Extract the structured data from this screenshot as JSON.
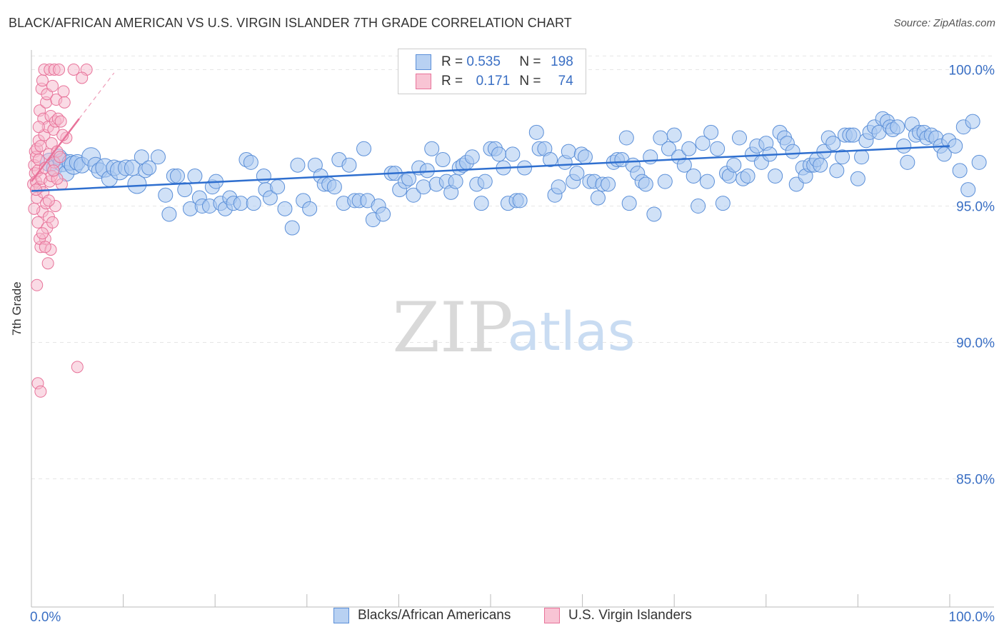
{
  "title": "BLACK/AFRICAN AMERICAN VS U.S. VIRGIN ISLANDER 7TH GRADE CORRELATION CHART",
  "source": "Source: ZipAtlas.com",
  "watermark": {
    "zip": "ZIP",
    "atlas": "atlas"
  },
  "colors": {
    "blue": "#5b8fd8",
    "blue_fill": "#a9c8f0",
    "blue_line": "#2f6fcf",
    "pink": "#e8739a",
    "pink_fill": "#f5b8cc",
    "axis_text": "#3a6fc4"
  },
  "legend": {
    "blue": {
      "r_label": "R =",
      "r_value": "0.535",
      "n_label": "N =",
      "n_value": "198"
    },
    "pink": {
      "r_label": "R =",
      "r_value": "0.171",
      "n_label": "N =",
      "n_value": "74"
    }
  },
  "chart_data": {
    "type": "scatter",
    "title": "BLACK/AFRICAN AMERICAN VS U.S. VIRGIN ISLANDER 7TH GRADE CORRELATION CHART",
    "xlabel": "",
    "ylabel": "7th Grade",
    "xlim": [
      0,
      100
    ],
    "ylim": [
      80.3,
      100.5
    ],
    "x_ticks": [
      "0.0%",
      "100.0%"
    ],
    "y_ticks": [
      {
        "value": 100,
        "label": "100.0%"
      },
      {
        "value": 95,
        "label": "95.0%"
      },
      {
        "value": 90,
        "label": "90.0%"
      },
      {
        "value": 85,
        "label": "85.0%"
      }
    ],
    "grid": true,
    "legend_position": "top-center",
    "series": [
      {
        "name": "Blacks/African Americans",
        "color": "#5b8fd8",
        "r": 0.535,
        "n": 198,
        "trend": {
          "x": [
            0,
            100
          ],
          "y": [
            95.55,
            97.2
          ]
        },
        "points": [
          [
            2.0,
            96.6
          ],
          [
            2.5,
            96.4
          ],
          [
            3.0,
            96.8
          ],
          [
            3.4,
            96.6
          ],
          [
            3.8,
            96.2
          ],
          [
            4.2,
            96.6
          ],
          [
            4.6,
            96.5
          ],
          [
            5.0,
            96.6
          ],
          [
            5.5,
            96.5
          ],
          [
            6.5,
            96.8
          ],
          [
            7.0,
            96.5
          ],
          [
            7.4,
            96.3
          ],
          [
            8.0,
            96.4
          ],
          [
            8.5,
            96.0
          ],
          [
            9.0,
            96.4
          ],
          [
            9.6,
            96.3
          ],
          [
            10.3,
            96.4
          ],
          [
            11.0,
            96.4
          ],
          [
            11.5,
            95.8
          ],
          [
            12.0,
            96.8
          ],
          [
            12.4,
            96.3
          ],
          [
            12.8,
            96.4
          ],
          [
            13.8,
            96.8
          ],
          [
            14.6,
            95.4
          ],
          [
            15.0,
            94.7
          ],
          [
            15.5,
            96.1
          ],
          [
            15.9,
            96.1
          ],
          [
            16.7,
            95.6
          ],
          [
            17.3,
            94.9
          ],
          [
            17.8,
            96.1
          ],
          [
            18.3,
            95.3
          ],
          [
            18.6,
            95.0
          ],
          [
            19.4,
            95.0
          ],
          [
            19.7,
            95.7
          ],
          [
            20.1,
            95.9
          ],
          [
            20.6,
            95.1
          ],
          [
            21.1,
            94.9
          ],
          [
            21.6,
            95.3
          ],
          [
            22.0,
            95.1
          ],
          [
            22.8,
            95.1
          ],
          [
            23.4,
            96.7
          ],
          [
            23.9,
            96.6
          ],
          [
            24.2,
            95.1
          ],
          [
            25.3,
            96.1
          ],
          [
            25.5,
            95.6
          ],
          [
            26.0,
            95.3
          ],
          [
            26.8,
            95.7
          ],
          [
            27.6,
            94.9
          ],
          [
            28.4,
            94.2
          ],
          [
            29.0,
            96.5
          ],
          [
            29.6,
            95.2
          ],
          [
            30.3,
            94.9
          ],
          [
            30.9,
            96.5
          ],
          [
            31.5,
            96.1
          ],
          [
            31.9,
            95.8
          ],
          [
            32.4,
            95.8
          ],
          [
            33.0,
            95.7
          ],
          [
            33.5,
            96.7
          ],
          [
            34.0,
            95.1
          ],
          [
            34.6,
            96.5
          ],
          [
            35.2,
            95.2
          ],
          [
            35.7,
            95.2
          ],
          [
            36.2,
            97.1
          ],
          [
            36.6,
            95.2
          ],
          [
            37.2,
            94.5
          ],
          [
            37.8,
            95.0
          ],
          [
            38.3,
            94.7
          ],
          [
            39.2,
            96.2
          ],
          [
            39.6,
            96.2
          ],
          [
            40.1,
            95.6
          ],
          [
            40.7,
            95.9
          ],
          [
            41.1,
            96.0
          ],
          [
            41.6,
            95.4
          ],
          [
            42.2,
            96.4
          ],
          [
            42.7,
            95.7
          ],
          [
            43.1,
            96.3
          ],
          [
            43.6,
            97.1
          ],
          [
            44.1,
            95.8
          ],
          [
            44.8,
            96.7
          ],
          [
            45.2,
            95.9
          ],
          [
            45.7,
            95.5
          ],
          [
            46.2,
            95.9
          ],
          [
            46.6,
            96.4
          ],
          [
            47.0,
            96.5
          ],
          [
            47.4,
            96.6
          ],
          [
            48.0,
            96.8
          ],
          [
            48.5,
            95.8
          ],
          [
            49.0,
            95.1
          ],
          [
            49.4,
            95.9
          ],
          [
            50.0,
            97.1
          ],
          [
            50.5,
            97.1
          ],
          [
            50.9,
            96.9
          ],
          [
            51.4,
            96.4
          ],
          [
            51.9,
            95.1
          ],
          [
            52.4,
            96.9
          ],
          [
            52.8,
            95.2
          ],
          [
            53.2,
            95.2
          ],
          [
            53.7,
            96.4
          ],
          [
            55.0,
            97.7
          ],
          [
            55.3,
            97.1
          ],
          [
            55.9,
            97.1
          ],
          [
            56.5,
            96.7
          ],
          [
            57.0,
            95.4
          ],
          [
            57.4,
            95.7
          ],
          [
            58.1,
            96.6
          ],
          [
            58.5,
            97.0
          ],
          [
            59.0,
            95.9
          ],
          [
            59.4,
            96.2
          ],
          [
            59.9,
            96.9
          ],
          [
            60.3,
            96.8
          ],
          [
            60.8,
            95.9
          ],
          [
            61.3,
            95.9
          ],
          [
            61.7,
            95.3
          ],
          [
            62.2,
            95.8
          ],
          [
            62.8,
            95.8
          ],
          [
            63.4,
            96.6
          ],
          [
            63.8,
            96.7
          ],
          [
            64.3,
            96.7
          ],
          [
            64.8,
            97.5
          ],
          [
            65.1,
            95.1
          ],
          [
            65.5,
            96.5
          ],
          [
            66.0,
            96.2
          ],
          [
            66.5,
            95.9
          ],
          [
            66.9,
            95.8
          ],
          [
            67.4,
            96.8
          ],
          [
            67.8,
            94.7
          ],
          [
            68.5,
            97.5
          ],
          [
            69.0,
            95.9
          ],
          [
            69.4,
            97.1
          ],
          [
            70.0,
            97.6
          ],
          [
            70.5,
            96.8
          ],
          [
            71.1,
            96.5
          ],
          [
            71.6,
            97.1
          ],
          [
            72.1,
            96.1
          ],
          [
            72.6,
            95.0
          ],
          [
            73.1,
            97.3
          ],
          [
            73.6,
            95.9
          ],
          [
            74.0,
            97.7
          ],
          [
            74.7,
            97.1
          ],
          [
            75.3,
            95.1
          ],
          [
            75.7,
            96.2
          ],
          [
            76.0,
            96.1
          ],
          [
            76.5,
            96.5
          ],
          [
            77.1,
            97.5
          ],
          [
            77.5,
            96.0
          ],
          [
            78.0,
            96.1
          ],
          [
            78.5,
            96.9
          ],
          [
            79.0,
            97.2
          ],
          [
            79.5,
            96.6
          ],
          [
            80.0,
            97.3
          ],
          [
            80.4,
            96.9
          ],
          [
            81.0,
            96.1
          ],
          [
            81.5,
            97.7
          ],
          [
            82.0,
            97.5
          ],
          [
            82.3,
            97.3
          ],
          [
            82.9,
            97.0
          ],
          [
            83.3,
            95.8
          ],
          [
            84.0,
            96.4
          ],
          [
            84.3,
            96.1
          ],
          [
            84.8,
            96.5
          ],
          [
            85.2,
            96.5
          ],
          [
            85.5,
            96.7
          ],
          [
            85.9,
            96.5
          ],
          [
            86.3,
            97.0
          ],
          [
            86.8,
            97.5
          ],
          [
            87.3,
            97.3
          ],
          [
            87.7,
            96.3
          ],
          [
            88.3,
            96.8
          ],
          [
            88.6,
            97.6
          ],
          [
            89.1,
            97.6
          ],
          [
            89.5,
            97.6
          ],
          [
            90.0,
            96.0
          ],
          [
            90.4,
            96.8
          ],
          [
            90.9,
            97.4
          ],
          [
            91.3,
            97.7
          ],
          [
            91.8,
            97.9
          ],
          [
            92.3,
            97.7
          ],
          [
            92.7,
            98.2
          ],
          [
            93.2,
            98.1
          ],
          [
            93.5,
            97.9
          ],
          [
            93.8,
            97.8
          ],
          [
            94.3,
            97.9
          ],
          [
            95.0,
            97.2
          ],
          [
            95.4,
            96.6
          ],
          [
            95.9,
            98.0
          ],
          [
            96.3,
            97.6
          ],
          [
            96.7,
            97.7
          ],
          [
            97.2,
            97.7
          ],
          [
            97.5,
            97.5
          ],
          [
            98.0,
            97.6
          ],
          [
            98.5,
            97.5
          ],
          [
            99.0,
            97.2
          ],
          [
            99.4,
            96.9
          ],
          [
            99.9,
            97.4
          ],
          [
            100.6,
            97.2
          ],
          [
            101.1,
            96.3
          ],
          [
            101.5,
            97.9
          ],
          [
            102.0,
            95.6
          ],
          [
            102.5,
            98.1
          ],
          [
            103.2,
            96.6
          ]
        ]
      },
      {
        "name": "U.S. Virgin Islanders",
        "color": "#e8739a",
        "r": 0.171,
        "n": 74,
        "trend": {
          "x": [
            0,
            5.2
          ],
          "y": [
            95.9,
            98.2
          ]
        },
        "points": [
          [
            0.2,
            95.8
          ],
          [
            0.3,
            96.5
          ],
          [
            0.4,
            96.2
          ],
          [
            0.4,
            97.0
          ],
          [
            0.5,
            96.8
          ],
          [
            0.5,
            95.9
          ],
          [
            0.6,
            97.1
          ],
          [
            0.6,
            95.3
          ],
          [
            0.7,
            96.3
          ],
          [
            0.7,
            94.4
          ],
          [
            0.8,
            96.7
          ],
          [
            0.8,
            97.4
          ],
          [
            0.9,
            98.5
          ],
          [
            0.9,
            95.7
          ],
          [
            1.0,
            97.2
          ],
          [
            1.0,
            93.5
          ],
          [
            1.1,
            99.3
          ],
          [
            1.1,
            96.0
          ],
          [
            1.2,
            99.6
          ],
          [
            1.2,
            94.8
          ],
          [
            1.3,
            98.2
          ],
          [
            1.3,
            95.5
          ],
          [
            1.4,
            100.0
          ],
          [
            1.4,
            97.6
          ],
          [
            1.5,
            96.4
          ],
          [
            1.5,
            93.8
          ],
          [
            1.6,
            98.8
          ],
          [
            1.6,
            95.1
          ],
          [
            1.7,
            99.1
          ],
          [
            1.7,
            94.2
          ],
          [
            1.8,
            97.9
          ],
          [
            1.8,
            92.9
          ],
          [
            1.9,
            96.9
          ],
          [
            1.9,
            94.6
          ],
          [
            2.0,
            100.0
          ],
          [
            2.0,
            95.9
          ],
          [
            2.1,
            98.3
          ],
          [
            2.1,
            93.4
          ],
          [
            2.2,
            97.3
          ],
          [
            2.2,
            96.1
          ],
          [
            2.3,
            99.4
          ],
          [
            2.3,
            94.4
          ],
          [
            2.4,
            97.8
          ],
          [
            2.5,
            100.0
          ],
          [
            2.5,
            96.6
          ],
          [
            2.6,
            98.1
          ],
          [
            2.6,
            95.0
          ],
          [
            2.7,
            98.9
          ],
          [
            2.8,
            97.0
          ],
          [
            2.9,
            98.2
          ],
          [
            3.0,
            100.0
          ],
          [
            3.1,
            96.8
          ],
          [
            3.2,
            98.1
          ],
          [
            3.3,
            95.8
          ],
          [
            3.5,
            99.2
          ],
          [
            3.6,
            98.8
          ],
          [
            3.8,
            97.5
          ],
          [
            0.6,
            92.1
          ],
          [
            0.7,
            88.5
          ],
          [
            1.0,
            88.2
          ],
          [
            5.0,
            89.1
          ],
          [
            6.0,
            100.0
          ],
          [
            5.5,
            99.7
          ],
          [
            4.6,
            100.0
          ],
          [
            0.9,
            93.8
          ],
          [
            1.5,
            93.5
          ],
          [
            0.5,
            95.6
          ],
          [
            2.8,
            96.0
          ],
          [
            1.2,
            94.0
          ],
          [
            0.8,
            97.9
          ],
          [
            1.9,
            95.2
          ],
          [
            2.4,
            96.3
          ],
          [
            3.4,
            97.6
          ],
          [
            0.3,
            94.9
          ]
        ]
      }
    ]
  },
  "bottom_legend": [
    {
      "label": "Blacks/African Americans"
    },
    {
      "label": "U.S. Virgin Islanders"
    }
  ]
}
